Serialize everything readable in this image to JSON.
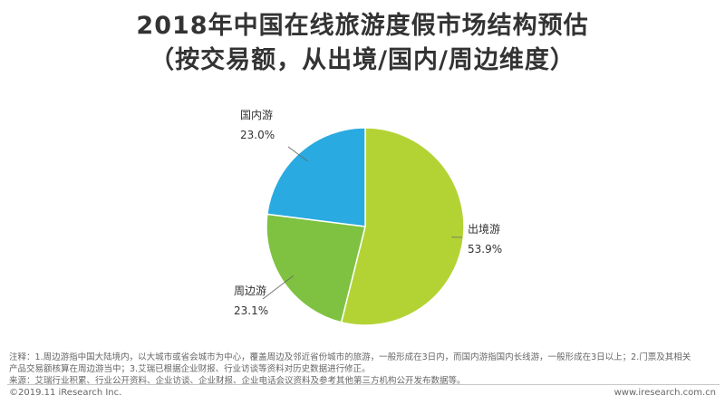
{
  "header": {
    "title_line1": "2018年中国在线旅游度假市场结构预估",
    "title_line2": "（按交易额，从出境/国内/周边维度）"
  },
  "chart_data": {
    "type": "pie",
    "title": "2018年中国在线旅游度假市场结构预估（按交易额，从出境/国内/周边维度）",
    "slices": [
      {
        "label": "出境游",
        "value": 53.9,
        "display": "53.9%",
        "color": "#b3d335"
      },
      {
        "label": "周边游",
        "value": 23.1,
        "display": "23.1%",
        "color": "#7fc241"
      },
      {
        "label": "国内游",
        "value": 23.0,
        "display": "23.0%",
        "color": "#29aae1"
      }
    ]
  },
  "notes": {
    "line1": "注释：1.周边游指中国大陆境内，以大城市或省会城市为中心，覆盖周边及邻近省份城市的旅游，一般形成在3日内，而国内游指国内长线游，一般形成在3日以上；2.门票及其相关",
    "line2": "产品交易额核算在周边游当中；3.艾瑞已根据企业财报、行业访谈等资料对历史数据进行修正。",
    "line3": "来源：艾瑞行业积累、行业公开资料、企业访谈、企业财报、企业电话会议资料及参考其他第三方机构公开发布数据等。"
  },
  "footer": {
    "left": "©2019.11 iResearch Inc.",
    "right": "www.iresearch.com.cn"
  }
}
